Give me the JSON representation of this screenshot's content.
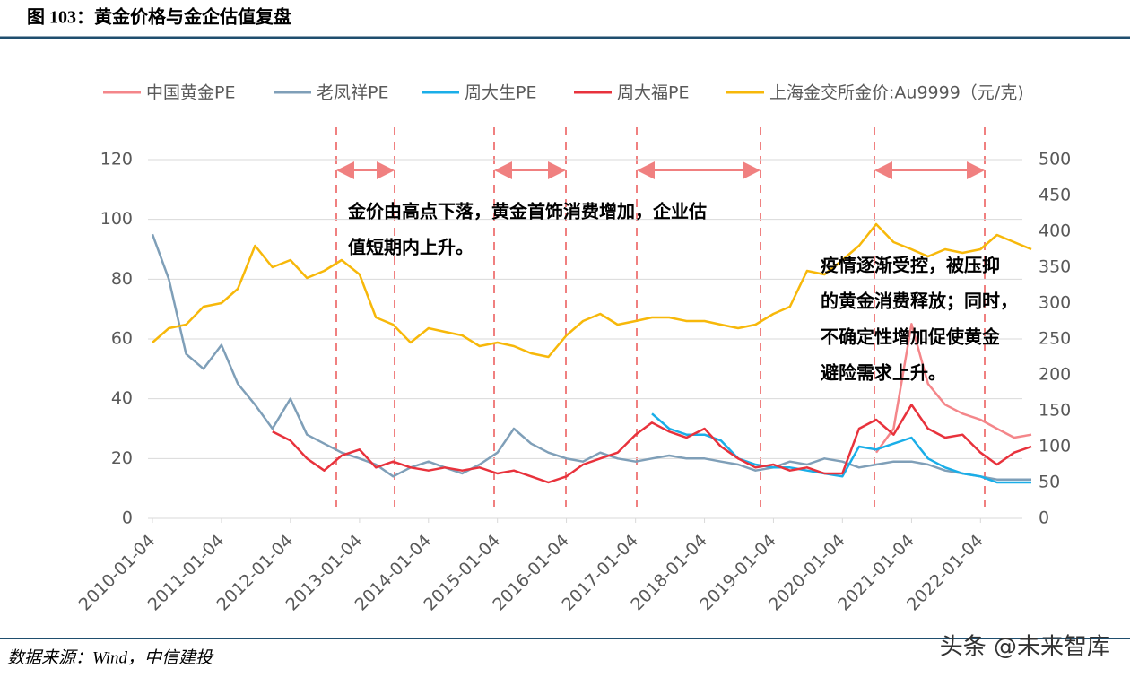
{
  "header": {
    "title": "图 103：黄金价格与金企估值复盘"
  },
  "chart_data": {
    "type": "line",
    "x": [
      "2010-01-04",
      "2010-04-01",
      "2010-07-01",
      "2010-10-01",
      "2011-01-04",
      "2011-04-01",
      "2011-07-01",
      "2011-10-01",
      "2012-01-04",
      "2012-04-01",
      "2012-07-01",
      "2012-10-01",
      "2013-01-04",
      "2013-04-01",
      "2013-07-01",
      "2013-10-01",
      "2014-01-04",
      "2014-04-01",
      "2014-07-01",
      "2014-10-01",
      "2015-01-04",
      "2015-04-01",
      "2015-07-01",
      "2015-10-01",
      "2016-01-04",
      "2016-04-01",
      "2016-07-01",
      "2016-10-01",
      "2017-01-04",
      "2017-04-01",
      "2017-07-01",
      "2017-10-01",
      "2018-01-04",
      "2018-04-01",
      "2018-07-01",
      "2018-10-01",
      "2019-01-04",
      "2019-04-01",
      "2019-07-01",
      "2019-10-01",
      "2020-01-04",
      "2020-04-01",
      "2020-07-01",
      "2020-10-01",
      "2021-01-04",
      "2021-04-01",
      "2021-07-01",
      "2021-10-01",
      "2022-01-04",
      "2022-04-01",
      "2022-07-01",
      "2022-09-30"
    ],
    "xlim": [
      "2010-01-04",
      "2022-09-30"
    ],
    "xticks": [
      "2010-01-04",
      "2011-01-04",
      "2012-01-04",
      "2013-01-04",
      "2014-01-04",
      "2015-01-04",
      "2016-01-04",
      "2017-01-04",
      "2018-01-04",
      "2019-01-04",
      "2020-01-04",
      "2021-01-04",
      "2022-01-04"
    ],
    "ylim": [
      0,
      120
    ],
    "yticks": [
      0,
      20,
      40,
      60,
      80,
      100,
      120
    ],
    "y2lim": [
      0,
      500
    ],
    "y2ticks": [
      0,
      50,
      100,
      150,
      200,
      250,
      300,
      350,
      400,
      450,
      500
    ],
    "grid": true,
    "series": [
      {
        "name": "中国黄金PE",
        "color": "#f4868a",
        "values": [
          null,
          null,
          null,
          null,
          null,
          null,
          null,
          null,
          null,
          null,
          null,
          null,
          null,
          null,
          null,
          null,
          null,
          null,
          null,
          null,
          null,
          null,
          null,
          null,
          null,
          null,
          null,
          null,
          null,
          null,
          null,
          null,
          null,
          null,
          null,
          null,
          null,
          null,
          null,
          null,
          null,
          null,
          22,
          30,
          65,
          45,
          38,
          35,
          33,
          30,
          27,
          28
        ]
      },
      {
        "name": "老凤祥PE",
        "color": "#7f9fb8",
        "values": [
          95,
          80,
          55,
          50,
          58,
          45,
          38,
          30,
          40,
          28,
          25,
          22,
          20,
          18,
          14,
          17,
          19,
          17,
          15,
          18,
          22,
          30,
          25,
          22,
          20,
          19,
          22,
          20,
          19,
          20,
          21,
          20,
          20,
          19,
          18,
          16,
          17,
          19,
          18,
          20,
          19,
          17,
          18,
          19,
          19,
          18,
          16,
          15,
          14,
          13,
          13,
          13
        ]
      },
      {
        "name": "周大生PE",
        "color": "#1aaee8",
        "values": [
          null,
          null,
          null,
          null,
          null,
          null,
          null,
          null,
          null,
          null,
          null,
          null,
          null,
          null,
          null,
          null,
          null,
          null,
          null,
          null,
          null,
          null,
          null,
          null,
          null,
          null,
          null,
          null,
          null,
          35,
          30,
          28,
          28,
          26,
          20,
          18,
          17,
          17,
          16,
          15,
          14,
          24,
          23,
          25,
          27,
          20,
          17,
          15,
          14,
          12,
          12,
          12
        ]
      },
      {
        "name": "周大福PE",
        "color": "#e8323c",
        "values": [
          null,
          null,
          null,
          null,
          null,
          null,
          null,
          29,
          26,
          20,
          16,
          21,
          23,
          17,
          19,
          17,
          16,
          17,
          16,
          17,
          15,
          16,
          14,
          12,
          14,
          18,
          20,
          22,
          28,
          32,
          29,
          27,
          30,
          24,
          20,
          17,
          18,
          16,
          17,
          15,
          15,
          30,
          33,
          28,
          38,
          30,
          27,
          28,
          22,
          18,
          22,
          24
        ]
      },
      {
        "name": "上海金交所金价:Au9999（元/克)",
        "color": "#f7b80a",
        "axis": "y2",
        "values": [
          245,
          265,
          270,
          295,
          300,
          320,
          380,
          350,
          360,
          335,
          345,
          360,
          340,
          280,
          270,
          245,
          265,
          260,
          255,
          240,
          245,
          240,
          230,
          225,
          255,
          275,
          285,
          270,
          275,
          280,
          280,
          275,
          275,
          270,
          265,
          270,
          285,
          295,
          345,
          340,
          360,
          380,
          410,
          385,
          375,
          365,
          375,
          370,
          375,
          395,
          385,
          375
        ]
      }
    ],
    "annotations": [
      [
        "金价由高点下落，黄金首饰消费增加，企业估",
        "值短期内上升。"
      ],
      [
        "疫情逐渐受控，被压抑",
        "的黄金消费释放；同时，",
        "不确定性增加促使黄金",
        "避险需求上升。"
      ]
    ]
  },
  "footer": {
    "source": "数据来源：Wind，中信建投",
    "watermark": "头条 @未来智库"
  }
}
